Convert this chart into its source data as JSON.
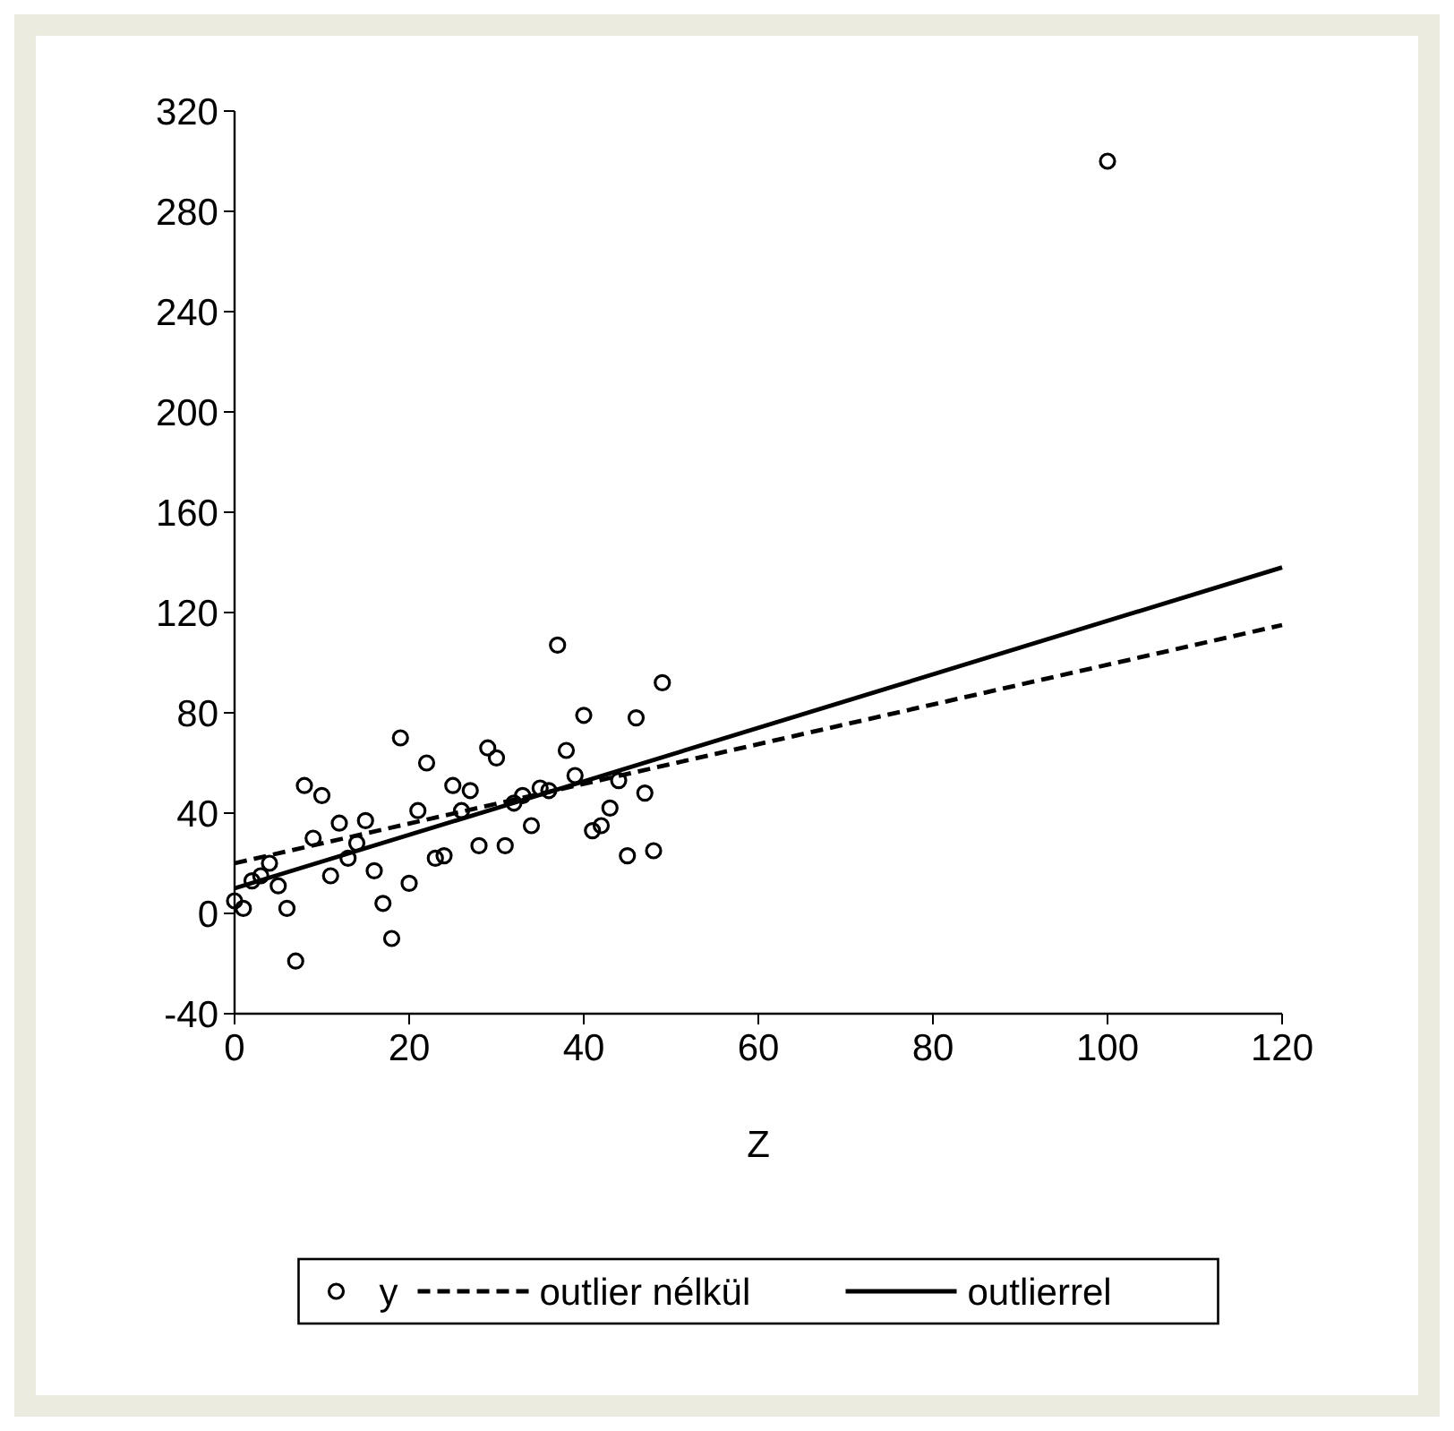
{
  "chart_data": {
    "type": "scatter",
    "xlabel": "Z",
    "xlim": [
      0,
      120
    ],
    "ylim": [
      -40,
      320
    ],
    "xticks": [
      0,
      20,
      40,
      60,
      80,
      100,
      120
    ],
    "yticks": [
      -40,
      0,
      40,
      80,
      120,
      160,
      200,
      240,
      280,
      320
    ],
    "grid": false,
    "legend": "bottom",
    "series": [
      {
        "name": "y",
        "color": "#000000",
        "marker": "circle",
        "x": [
          0,
          1,
          2,
          3,
          4,
          5,
          6,
          7,
          8,
          9,
          10,
          11,
          12,
          13,
          14,
          15,
          16,
          17,
          18,
          19,
          20,
          21,
          22,
          23,
          24,
          25,
          26,
          27,
          28,
          29,
          30,
          31,
          32,
          33,
          34,
          35,
          36,
          37,
          38,
          39,
          40,
          41,
          42,
          43,
          44,
          45,
          46,
          47,
          48,
          49,
          100
        ],
        "values": [
          5,
          2,
          13,
          15,
          20,
          11,
          2,
          -19,
          51,
          30,
          47,
          15,
          36,
          22,
          28,
          37,
          17,
          4,
          -10,
          70,
          12,
          41,
          60,
          22,
          23,
          51,
          41,
          49,
          27,
          66,
          62,
          27,
          44,
          47,
          35,
          50,
          49,
          107,
          65,
          55,
          79,
          33,
          35,
          42,
          53,
          23,
          78,
          48,
          25,
          92,
          300
        ]
      },
      {
        "name": "outlier nélkül",
        "type": "line",
        "color": "#000000",
        "line_style": "dashed",
        "x": [
          0,
          120
        ],
        "values": [
          20,
          115
        ]
      },
      {
        "name": "outlierrel",
        "type": "line",
        "color": "#000000",
        "line_style": "solid",
        "x": [
          0,
          120
        ],
        "values": [
          10,
          138
        ]
      }
    ]
  }
}
